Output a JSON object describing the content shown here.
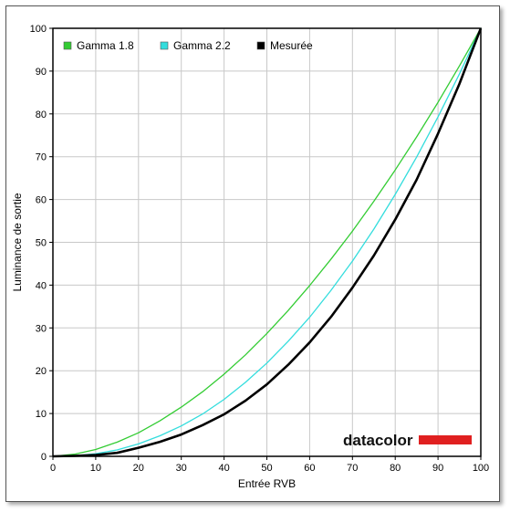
{
  "chart_data": {
    "type": "line",
    "xlabel": "Entrée RVB",
    "ylabel": "Luminance de sortie",
    "xlim": [
      0,
      100
    ],
    "ylim": [
      0,
      100
    ],
    "xticks": [
      "0",
      "10",
      "20",
      "30",
      "40",
      "50",
      "60",
      "70",
      "80",
      "90",
      "100"
    ],
    "yticks": [
      "0",
      "10",
      "20",
      "30",
      "40",
      "50",
      "60",
      "70",
      "80",
      "90",
      "100"
    ],
    "grid": true,
    "legend": "top-left",
    "series": [
      {
        "name": "Gamma 1.8",
        "color": "#33cc33",
        "x": [
          0,
          5,
          10,
          15,
          20,
          25,
          30,
          35,
          40,
          45,
          50,
          55,
          60,
          65,
          70,
          75,
          80,
          85,
          90,
          95,
          100
        ],
        "y": [
          0,
          0.5,
          1.6,
          3.3,
          5.5,
          8.3,
          11.5,
          15.1,
          19.2,
          23.7,
          28.7,
          34.1,
          39.9,
          46.1,
          52.6,
          59.6,
          66.9,
          74.6,
          82.7,
          91.2,
          100
        ]
      },
      {
        "name": "Gamma 2.2",
        "color": "#33dddd",
        "x": [
          0,
          5,
          10,
          15,
          20,
          25,
          30,
          35,
          40,
          45,
          50,
          55,
          60,
          65,
          70,
          75,
          80,
          85,
          90,
          95,
          100
        ],
        "y": [
          0,
          0.1,
          0.6,
          1.5,
          2.9,
          4.8,
          7.1,
          9.9,
          13.3,
          17.3,
          21.8,
          26.9,
          32.5,
          38.8,
          45.6,
          53.1,
          61.2,
          69.9,
          79.3,
          89.3,
          100
        ]
      },
      {
        "name": "Mesurée",
        "color": "#000000",
        "x": [
          0,
          5,
          10,
          15,
          20,
          25,
          30,
          35,
          40,
          45,
          50,
          55,
          60,
          65,
          70,
          75,
          80,
          85,
          90,
          95,
          100
        ],
        "y": [
          0,
          0.1,
          0.3,
          0.8,
          2.0,
          3.4,
          5.1,
          7.3,
          9.8,
          13.0,
          16.8,
          21.4,
          26.6,
          32.6,
          39.4,
          46.9,
          55.3,
          64.6,
          75.4,
          87.0,
          100
        ]
      }
    ]
  },
  "brand": {
    "name": "datacolor",
    "bar_color": "#e02020"
  }
}
